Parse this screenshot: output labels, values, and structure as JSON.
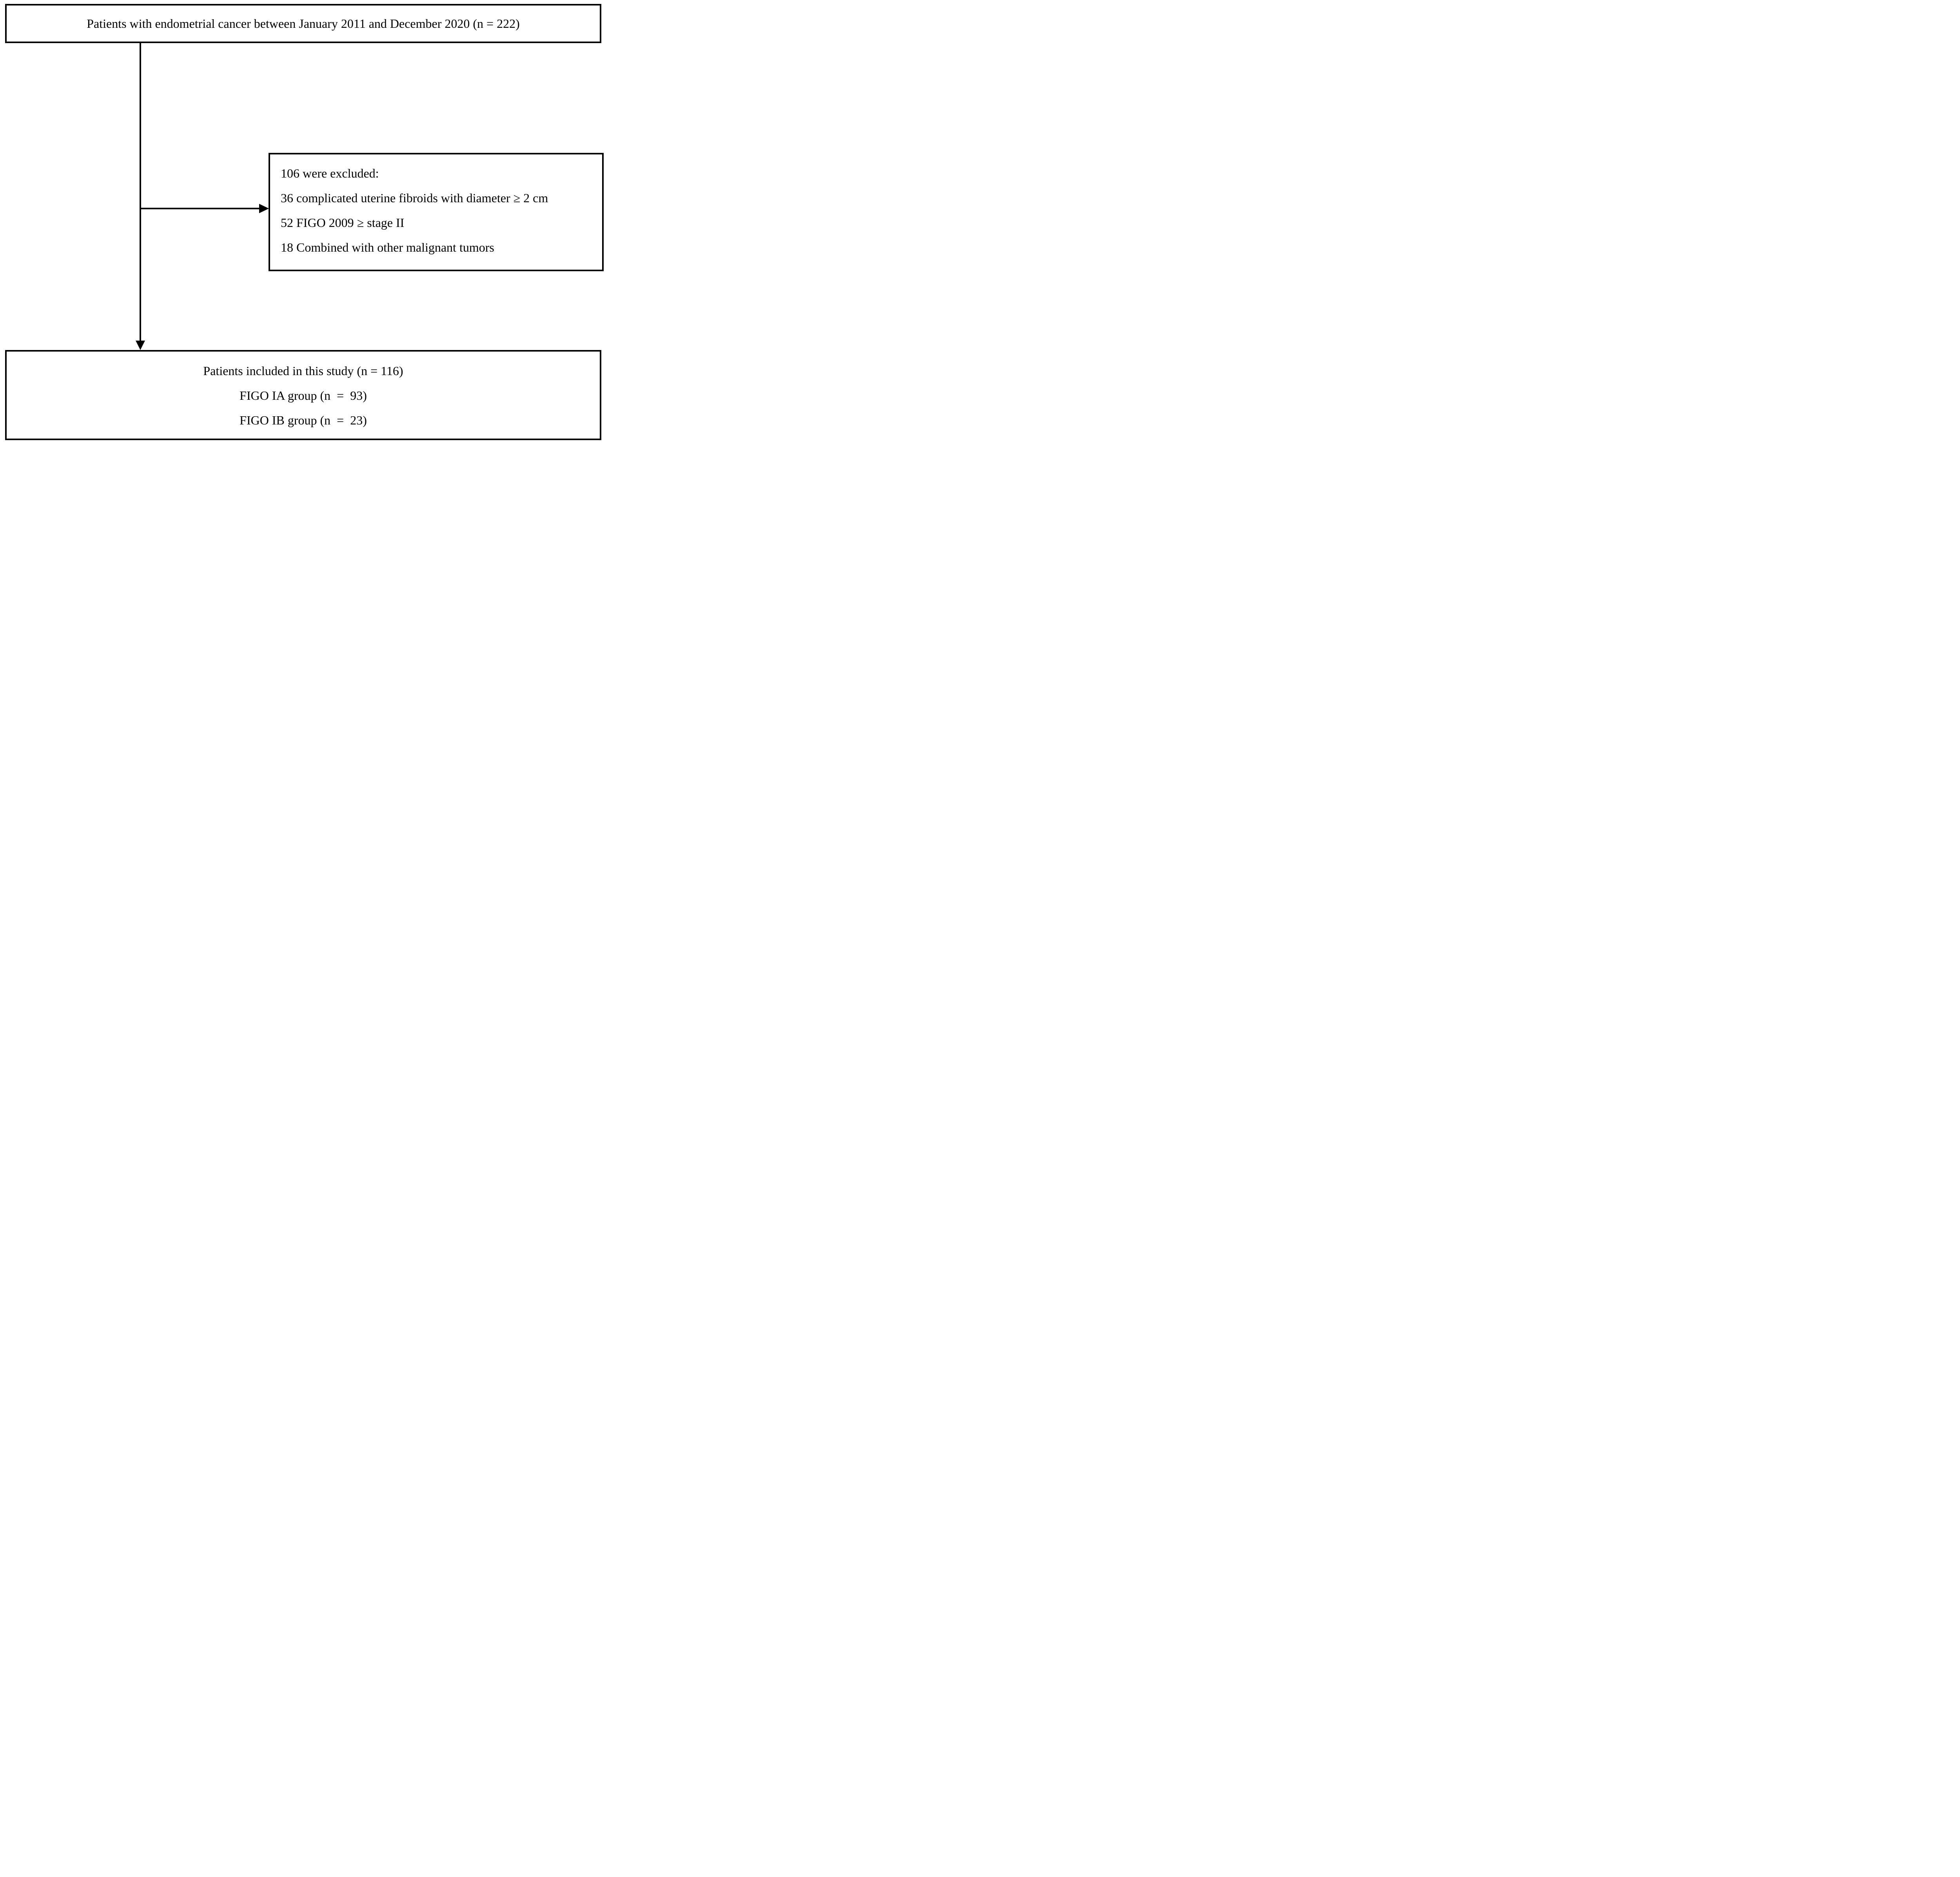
{
  "figure": {
    "type": "patient-flow-diagram",
    "colors": {
      "line": "#000000",
      "background": "#ffffff",
      "text": "#000000"
    },
    "top_box": {
      "text": "Patients with endometrial cancer between January 2011 and December 2020 (n = 222)"
    },
    "exclusion_box": {
      "lines": [
        "106 were excluded:",
        "36 complicated uterine fibroids with diameter ≥ 2 cm",
        "52 FIGO 2009 ≥ stage II",
        "18 Combined with other malignant tumors"
      ]
    },
    "bottom_box": {
      "lines": [
        "Patients included in this study (n = 116)",
        "FIGO IA group (n  =  93)",
        "FIGO IB group (n  =  23)"
      ]
    }
  }
}
